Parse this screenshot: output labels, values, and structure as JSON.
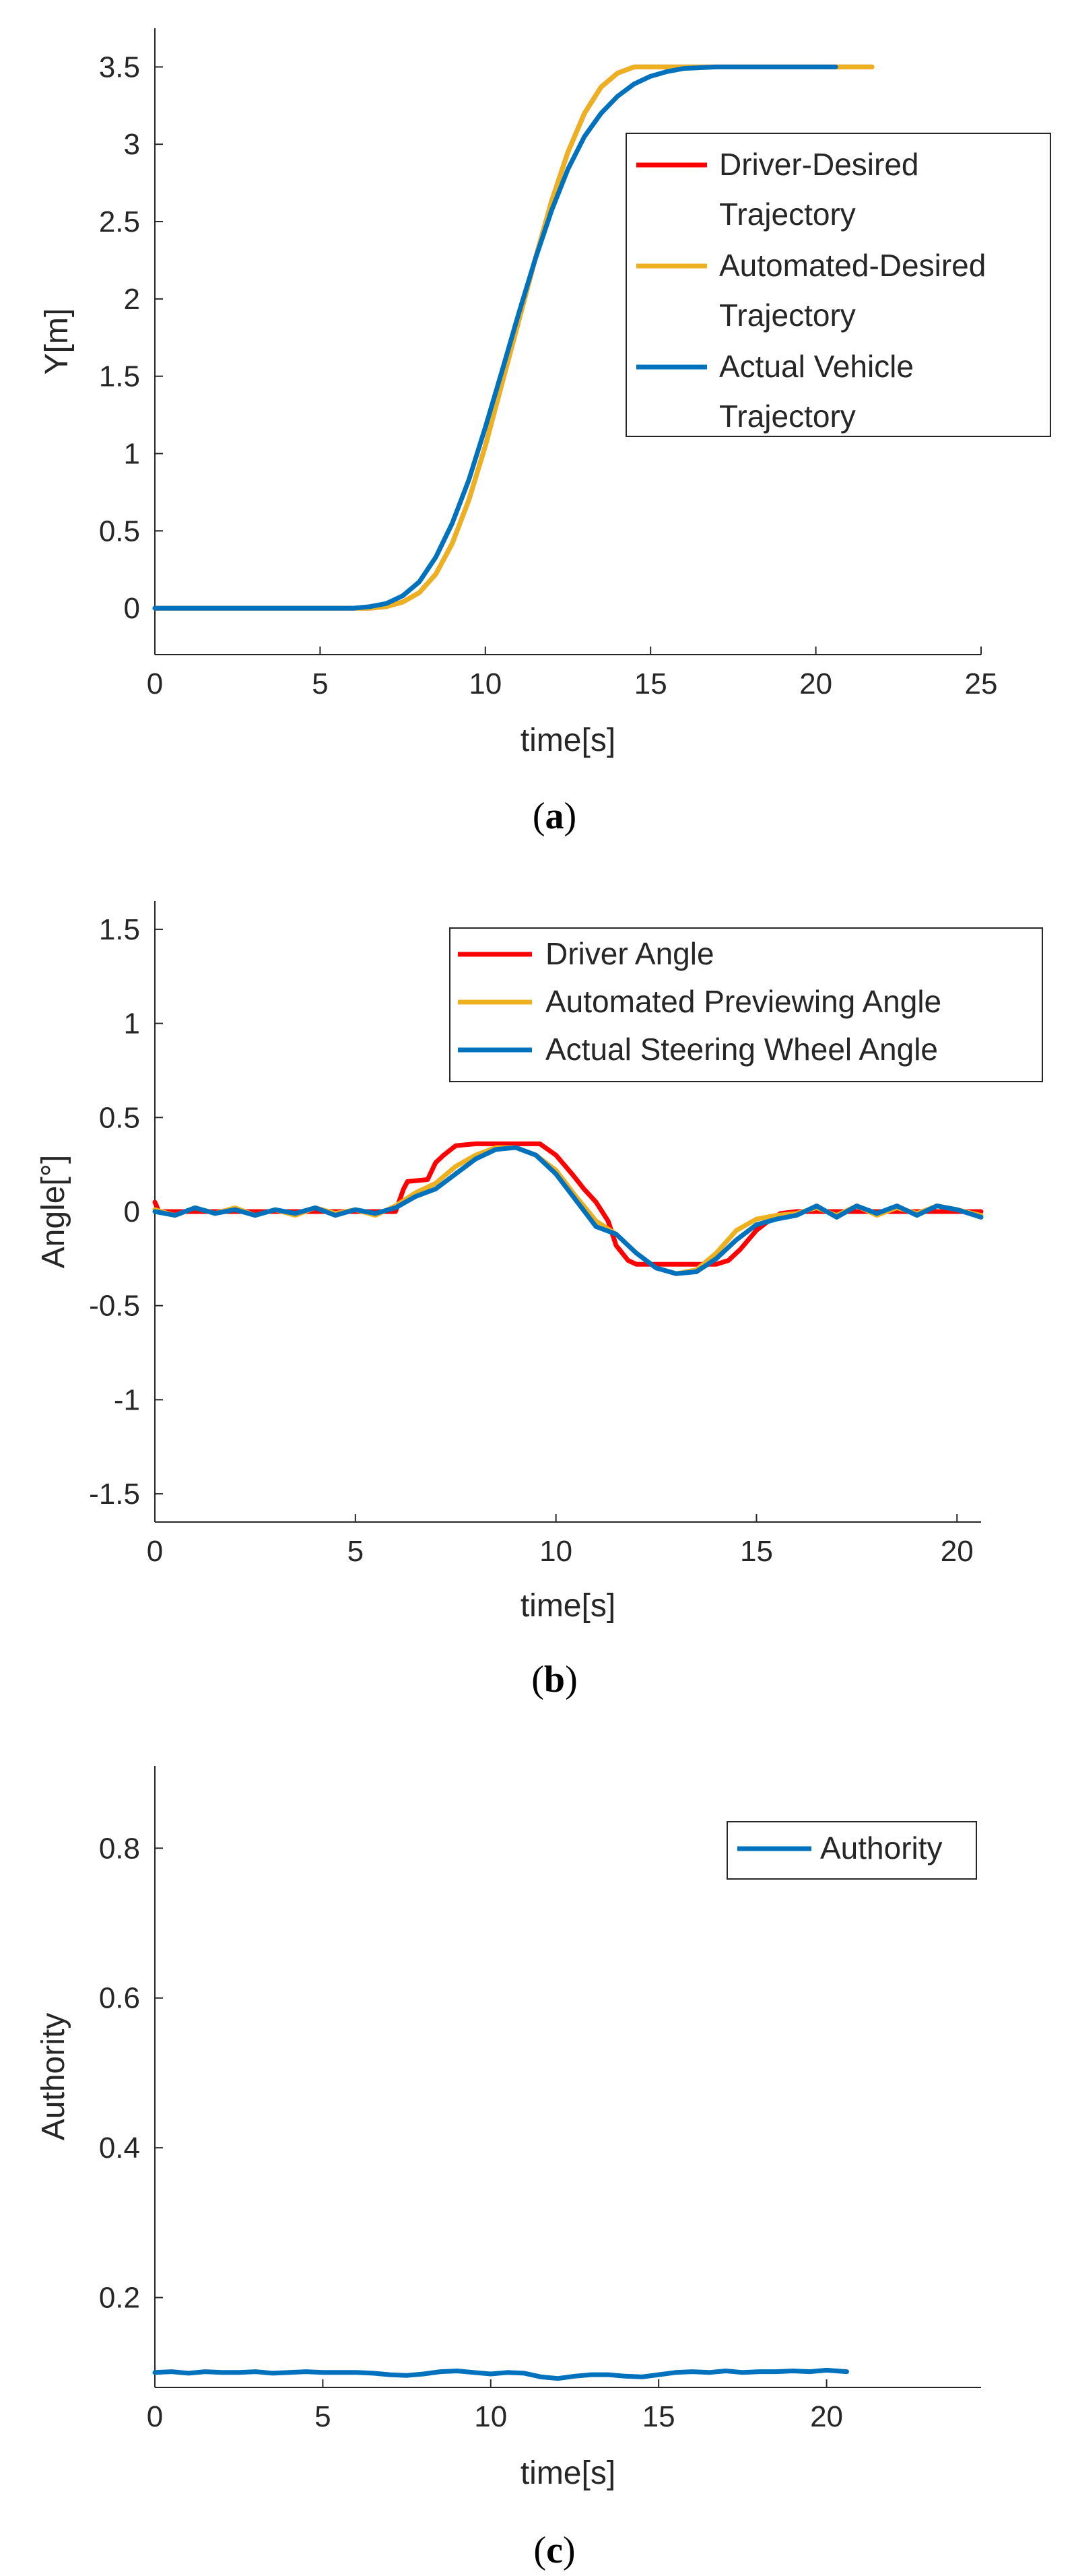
{
  "chart_data": [
    {
      "type": "line",
      "id": "a",
      "caption_letter": "a",
      "xlabel": "time[s]",
      "ylabel": "Y[m]",
      "xlim": [
        0,
        25
      ],
      "ylim": [
        -0.3,
        3.75
      ],
      "xticks": [
        0,
        5,
        10,
        15,
        20,
        25
      ],
      "xtick_labels": [
        "0",
        "5",
        "10",
        "15",
        "20",
        "25"
      ],
      "yticks": [
        0,
        0.5,
        1,
        1.5,
        2,
        2.5,
        3,
        3.5
      ],
      "ytick_labels": [
        "0",
        "0.5",
        "1",
        "1.5",
        "2",
        "2.5",
        "3",
        "3.5"
      ],
      "legend": {
        "position": "right",
        "entries": [
          {
            "lines": [
              "Driver-Desired",
              "Trajectory"
            ],
            "color": "#ff0000"
          },
          {
            "lines": [
              "Automated-Desired",
              "Trajectory"
            ],
            "color": "#edb120"
          },
          {
            "lines": [
              "Actual Vehicle",
              "Trajectory"
            ],
            "color": "#0072bd"
          }
        ]
      },
      "series": [
        {
          "name": "Driver-Desired Trajectory",
          "color": "#ff0000",
          "x": [
            0,
            5,
            6.5,
            7,
            7.5,
            8,
            8.5,
            9,
            9.5,
            10,
            10.5,
            11,
            11.5,
            12,
            12.5,
            13,
            13.5,
            14,
            14.5,
            15,
            16,
            18,
            20,
            21.7
          ],
          "y": [
            0,
            0,
            0,
            0.01,
            0.04,
            0.1,
            0.22,
            0.42,
            0.7,
            1.05,
            1.45,
            1.85,
            2.25,
            2.63,
            2.95,
            3.2,
            3.37,
            3.46,
            3.5,
            3.5,
            3.5,
            3.5,
            3.5,
            3.5
          ]
        },
        {
          "name": "Automated-Desired Trajectory",
          "color": "#edb120",
          "x": [
            0,
            5,
            6.5,
            7,
            7.5,
            8,
            8.5,
            9,
            9.5,
            10,
            10.5,
            11,
            11.5,
            12,
            12.5,
            13,
            13.5,
            14,
            14.5,
            15,
            16,
            18,
            20,
            21.7
          ],
          "y": [
            0,
            0,
            0,
            0.01,
            0.04,
            0.1,
            0.22,
            0.42,
            0.7,
            1.05,
            1.45,
            1.85,
            2.25,
            2.63,
            2.95,
            3.2,
            3.37,
            3.46,
            3.5,
            3.5,
            3.5,
            3.5,
            3.5,
            3.5
          ]
        },
        {
          "name": "Actual Vehicle Trajectory",
          "color": "#0072bd",
          "x": [
            0,
            5,
            6,
            6.5,
            7,
            7.5,
            8,
            8.5,
            9,
            9.5,
            10,
            10.5,
            11,
            11.5,
            12,
            12.5,
            13,
            13.5,
            14,
            14.5,
            15,
            15.5,
            16,
            17,
            18,
            19,
            20,
            20.6
          ],
          "y": [
            0,
            0,
            0,
            0.01,
            0.03,
            0.08,
            0.17,
            0.33,
            0.55,
            0.83,
            1.17,
            1.53,
            1.9,
            2.25,
            2.57,
            2.84,
            3.05,
            3.2,
            3.31,
            3.39,
            3.44,
            3.47,
            3.49,
            3.5,
            3.5,
            3.5,
            3.5,
            3.5
          ]
        }
      ]
    },
    {
      "type": "line",
      "id": "b",
      "caption_letter": "b",
      "xlabel": "time[s]",
      "ylabel": "Angle[°]",
      "xlim": [
        0,
        20.6
      ],
      "ylim": [
        -1.65,
        1.65
      ],
      "xticks": [
        0,
        5,
        10,
        15,
        20
      ],
      "xtick_labels": [
        "0",
        "5",
        "10",
        "15",
        "20"
      ],
      "yticks": [
        -1.5,
        -1,
        -0.5,
        0,
        0.5,
        1,
        1.5
      ],
      "ytick_labels": [
        "-1.5",
        "-1",
        "-0.5",
        "0",
        "0.5",
        "1",
        "1.5"
      ],
      "legend": {
        "position": "top-right",
        "entries": [
          {
            "lines": [
              "Driver Angle"
            ],
            "color": "#ff0000"
          },
          {
            "lines": [
              "Automated Previewing Angle"
            ],
            "color": "#edb120"
          },
          {
            "lines": [
              "Actual Steering Wheel Angle"
            ],
            "color": "#0072bd"
          }
        ]
      },
      "series": [
        {
          "name": "Driver Angle",
          "color": "#ff0000",
          "x": [
            0,
            0.1,
            0.3,
            1,
            2,
            3,
            4,
            5,
            6,
            6.2,
            6.3,
            6.8,
            7,
            7.2,
            7.5,
            8,
            9,
            9.6,
            10.0,
            10.4,
            10.7,
            11.0,
            11.3,
            11.5,
            11.8,
            12.0,
            12.5,
            13,
            14,
            14.3,
            14.6,
            15.0,
            15.3,
            15.6,
            16,
            17,
            18,
            19,
            20,
            20.6
          ],
          "y": [
            0.05,
            0,
            0,
            0,
            0,
            0,
            0,
            0,
            0,
            0.12,
            0.16,
            0.17,
            0.26,
            0.3,
            0.35,
            0.36,
            0.36,
            0.36,
            0.3,
            0.2,
            0.12,
            0.05,
            -0.05,
            -0.18,
            -0.26,
            -0.28,
            -0.28,
            -0.28,
            -0.28,
            -0.26,
            -0.2,
            -0.1,
            -0.05,
            -0.01,
            0,
            0,
            0,
            0,
            0,
            0
          ]
        },
        {
          "name": "Automated Previewing Angle",
          "color": "#edb120",
          "x": [
            0,
            0.5,
            1,
            1.5,
            2,
            2.5,
            3,
            3.5,
            4,
            4.5,
            5,
            5.5,
            6,
            6.5,
            7,
            7.5,
            8,
            8.5,
            9,
            9.5,
            10,
            10.5,
            11,
            11.5,
            12,
            12.5,
            13,
            13.5,
            14,
            14.5,
            15,
            15.5,
            16,
            16.5,
            17,
            17.5,
            18,
            18.5,
            19,
            19.5,
            20,
            20.6
          ],
          "y": [
            0.01,
            -0.02,
            0.02,
            -0.01,
            0.02,
            -0.02,
            0.01,
            -0.02,
            0.02,
            -0.01,
            0.01,
            -0.02,
            0.03,
            0.1,
            0.15,
            0.24,
            0.3,
            0.34,
            0.34,
            0.3,
            0.22,
            0.08,
            -0.05,
            -0.12,
            -0.22,
            -0.3,
            -0.33,
            -0.31,
            -0.22,
            -0.1,
            -0.04,
            -0.02,
            -0.01,
            0.02,
            -0.02,
            0.03,
            -0.02,
            0.02,
            -0.01,
            0.03,
            0.01,
            -0.02
          ]
        },
        {
          "name": "Actual Steering Wheel Angle",
          "color": "#0072bd",
          "x": [
            0,
            0.5,
            1,
            1.5,
            2,
            2.5,
            3,
            3.5,
            4,
            4.5,
            5,
            5.5,
            6,
            6.5,
            7,
            7.5,
            8,
            8.5,
            9,
            9.5,
            10,
            10.5,
            11,
            11.5,
            12,
            12.5,
            13,
            13.5,
            14,
            14.5,
            15,
            15.5,
            16,
            16.5,
            17,
            17.5,
            18,
            18.5,
            19,
            19.5,
            20,
            20.6
          ],
          "y": [
            0,
            -0.02,
            0.02,
            -0.01,
            0.01,
            -0.02,
            0.01,
            -0.01,
            0.02,
            -0.02,
            0.01,
            -0.01,
            0.02,
            0.08,
            0.12,
            0.2,
            0.28,
            0.33,
            0.34,
            0.3,
            0.2,
            0.06,
            -0.08,
            -0.12,
            -0.22,
            -0.3,
            -0.33,
            -0.32,
            -0.25,
            -0.15,
            -0.07,
            -0.04,
            -0.02,
            0.03,
            -0.03,
            0.03,
            -0.01,
            0.03,
            -0.02,
            0.03,
            0.01,
            -0.03
          ]
        }
      ]
    },
    {
      "type": "line",
      "id": "c",
      "caption_letter": "c",
      "xlabel": "time[s]",
      "ylabel": "Authority",
      "xlim": [
        0,
        24.6
      ],
      "ylim": [
        0.08,
        0.91
      ],
      "xticks": [
        0,
        5,
        10,
        15,
        20
      ],
      "xtick_labels": [
        "0",
        "5",
        "10",
        "15",
        "20"
      ],
      "yticks": [
        0.2,
        0.4,
        0.6,
        0.8
      ],
      "ytick_labels": [
        "0.2",
        "0.4",
        "0.6",
        "0.8"
      ],
      "legend": {
        "position": "top-right",
        "entries": [
          {
            "lines": [
              "Authority"
            ],
            "color": "#0072bd"
          }
        ]
      },
      "series": [
        {
          "name": "Authority",
          "color": "#0072bd",
          "x": [
            0,
            0.5,
            1,
            1.5,
            2,
            2.5,
            3,
            3.5,
            4,
            4.5,
            5,
            5.5,
            6,
            6.5,
            7,
            7.5,
            8,
            8.5,
            9,
            9.5,
            10,
            10.5,
            11,
            11.5,
            12,
            12.5,
            13,
            13.5,
            14,
            14.5,
            15,
            15.5,
            16,
            16.5,
            17,
            17.5,
            18,
            18.5,
            19,
            19.5,
            20,
            20.6
          ],
          "y": [
            0.1,
            0.101,
            0.099,
            0.101,
            0.1,
            0.1,
            0.101,
            0.099,
            0.1,
            0.101,
            0.1,
            0.1,
            0.1,
            0.099,
            0.097,
            0.096,
            0.098,
            0.101,
            0.102,
            0.1,
            0.098,
            0.1,
            0.099,
            0.094,
            0.092,
            0.095,
            0.097,
            0.097,
            0.095,
            0.094,
            0.097,
            0.1,
            0.101,
            0.1,
            0.102,
            0.1,
            0.101,
            0.101,
            0.102,
            0.101,
            0.103,
            0.101
          ]
        }
      ]
    }
  ]
}
